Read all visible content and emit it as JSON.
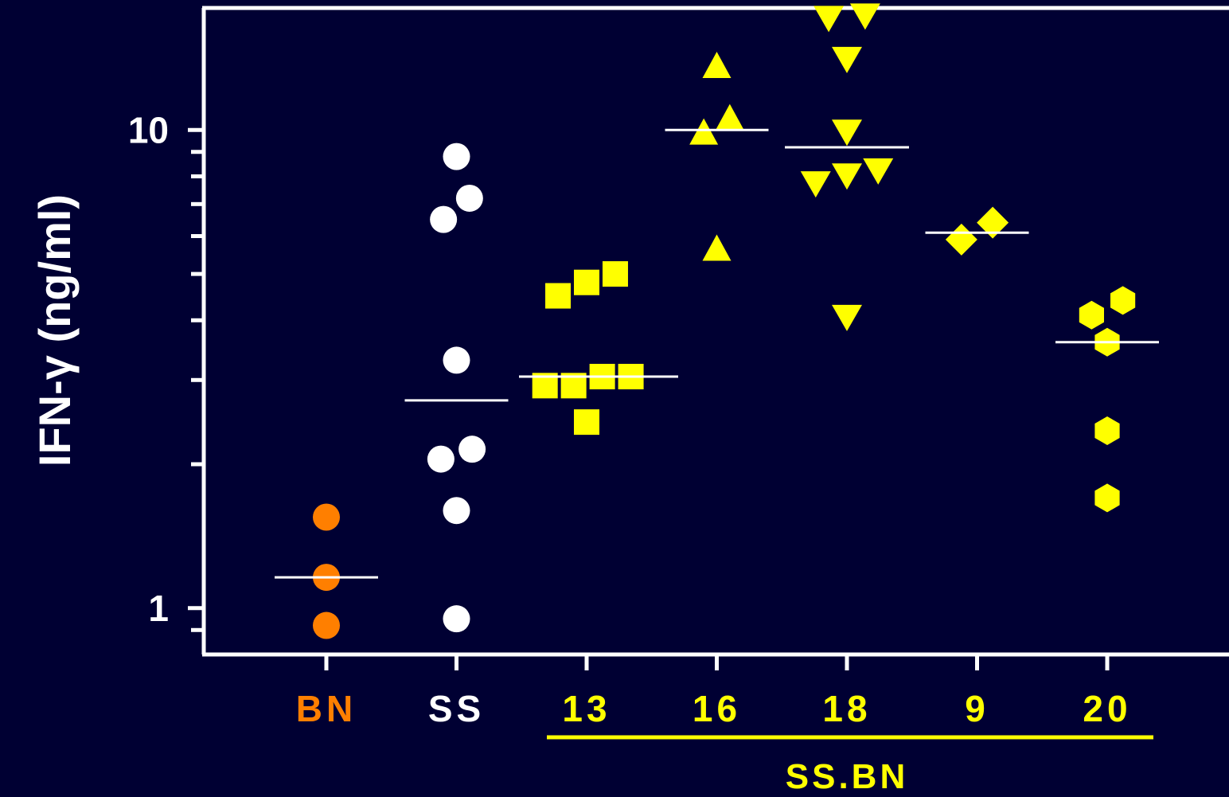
{
  "chart_data": {
    "type": "scatter",
    "ylabel": "IFN-γ (ng/ml)",
    "yscale": "log",
    "ylim": [
      0.8,
      18
    ],
    "ytick_labels": [
      {
        "value": 1,
        "label": "1"
      },
      {
        "value": 10,
        "label": "10"
      }
    ],
    "yminor_ticks": [
      0.9,
      2,
      3,
      4,
      5,
      6,
      7,
      8,
      9
    ],
    "grid": false,
    "categories": [
      "BN",
      "SS",
      "13",
      "16",
      "18",
      "9",
      "20"
    ],
    "bracket": {
      "label": "SS.BN",
      "from": "13",
      "to": "20",
      "color": "#FFFF00"
    },
    "series": [
      {
        "category": "BN",
        "color": "#FF7F00",
        "marker": "circle",
        "mean": 1.16,
        "points": [
          {
            "offset": 0,
            "y": 1.55
          },
          {
            "offset": 0,
            "y": 1.16
          },
          {
            "offset": 0,
            "y": 0.92
          }
        ]
      },
      {
        "category": "SS",
        "color": "#FFFFFF",
        "marker": "circle",
        "mean": 2.72,
        "points": [
          {
            "offset": 0,
            "y": 8.8
          },
          {
            "offset": 0.1,
            "y": 7.2
          },
          {
            "offset": -0.1,
            "y": 6.5
          },
          {
            "offset": 0,
            "y": 3.3
          },
          {
            "offset": 0.12,
            "y": 2.15
          },
          {
            "offset": -0.12,
            "y": 2.05
          },
          {
            "offset": 0,
            "y": 1.6
          },
          {
            "offset": 0,
            "y": 0.95
          }
        ]
      },
      {
        "category": "13",
        "color": "#FFFF00",
        "marker": "square",
        "mean": 3.05,
        "points": [
          {
            "offset": -0.22,
            "y": 4.5
          },
          {
            "offset": 0,
            "y": 4.8
          },
          {
            "offset": 0.22,
            "y": 5.0
          },
          {
            "offset": -0.32,
            "y": 2.92
          },
          {
            "offset": -0.1,
            "y": 2.92
          },
          {
            "offset": 0.12,
            "y": 3.05
          },
          {
            "offset": 0.34,
            "y": 3.05
          },
          {
            "offset": 0,
            "y": 2.45
          }
        ]
      },
      {
        "category": "16",
        "color": "#FFFF00",
        "marker": "triangle-up",
        "mean": 10,
        "points": [
          {
            "offset": 0,
            "y": 13.5
          },
          {
            "offset": 0.1,
            "y": 10.5
          },
          {
            "offset": -0.1,
            "y": 9.8
          },
          {
            "offset": 0,
            "y": 5.6
          }
        ]
      },
      {
        "category": "18",
        "color": "#FFFF00",
        "marker": "triangle-down",
        "mean": 9.2,
        "points": [
          {
            "offset": -0.14,
            "y": 17.3
          },
          {
            "offset": 0.14,
            "y": 17.5
          },
          {
            "offset": 0,
            "y": 14.2
          },
          {
            "offset": 0,
            "y": 10.0
          },
          {
            "offset": -0.24,
            "y": 7.8
          },
          {
            "offset": 0,
            "y": 8.1
          },
          {
            "offset": 0.24,
            "y": 8.3
          },
          {
            "offset": 0,
            "y": 4.1
          }
        ]
      },
      {
        "category": "9",
        "color": "#FFFF00",
        "marker": "diamond",
        "mean": 6.1,
        "points": [
          {
            "offset": -0.12,
            "y": 5.9
          },
          {
            "offset": 0.12,
            "y": 6.4
          }
        ]
      },
      {
        "category": "20",
        "color": "#FFFF00",
        "marker": "hexagon",
        "mean": 3.6,
        "points": [
          {
            "offset": 0.12,
            "y": 4.4
          },
          {
            "offset": -0.12,
            "y": 4.1
          },
          {
            "offset": 0,
            "y": 3.6
          },
          {
            "offset": 0,
            "y": 2.35
          },
          {
            "offset": 0,
            "y": 1.7
          }
        ]
      }
    ]
  }
}
